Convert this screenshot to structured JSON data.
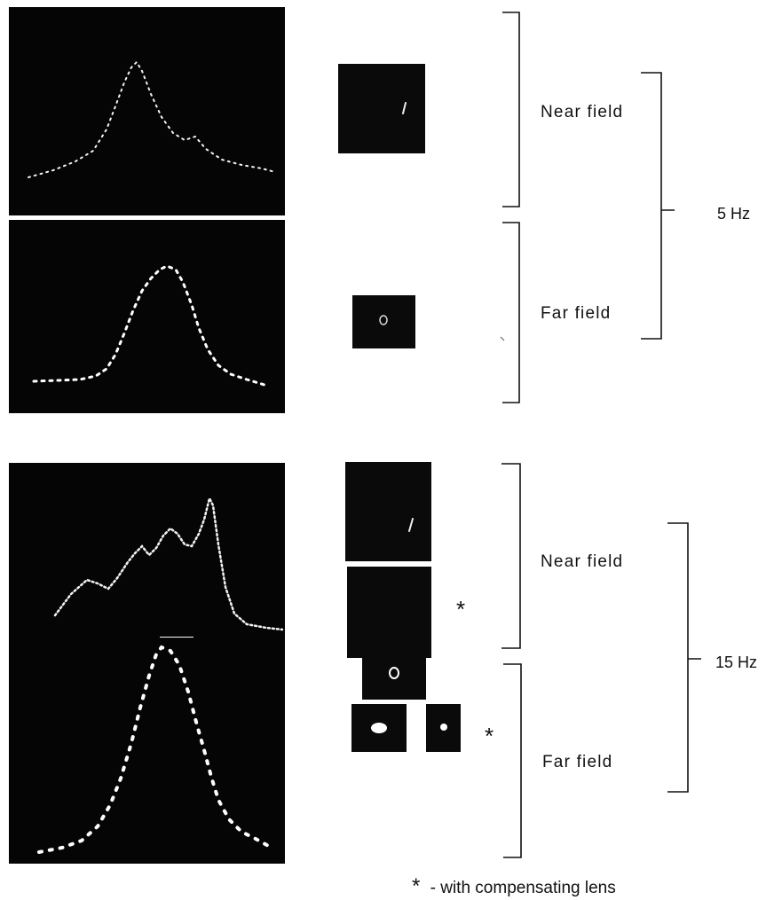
{
  "groups": [
    {
      "frequency_label": "5 Hz",
      "near_field_label": "Near field",
      "far_field_label": "Far field"
    },
    {
      "frequency_label": "15 Hz",
      "near_field_label": "Near field",
      "far_field_label": "Far field",
      "near_field_marker": "*",
      "far_field_marker": "*"
    }
  ],
  "legend": {
    "symbol": "*",
    "text": "- with compensating lens"
  }
}
